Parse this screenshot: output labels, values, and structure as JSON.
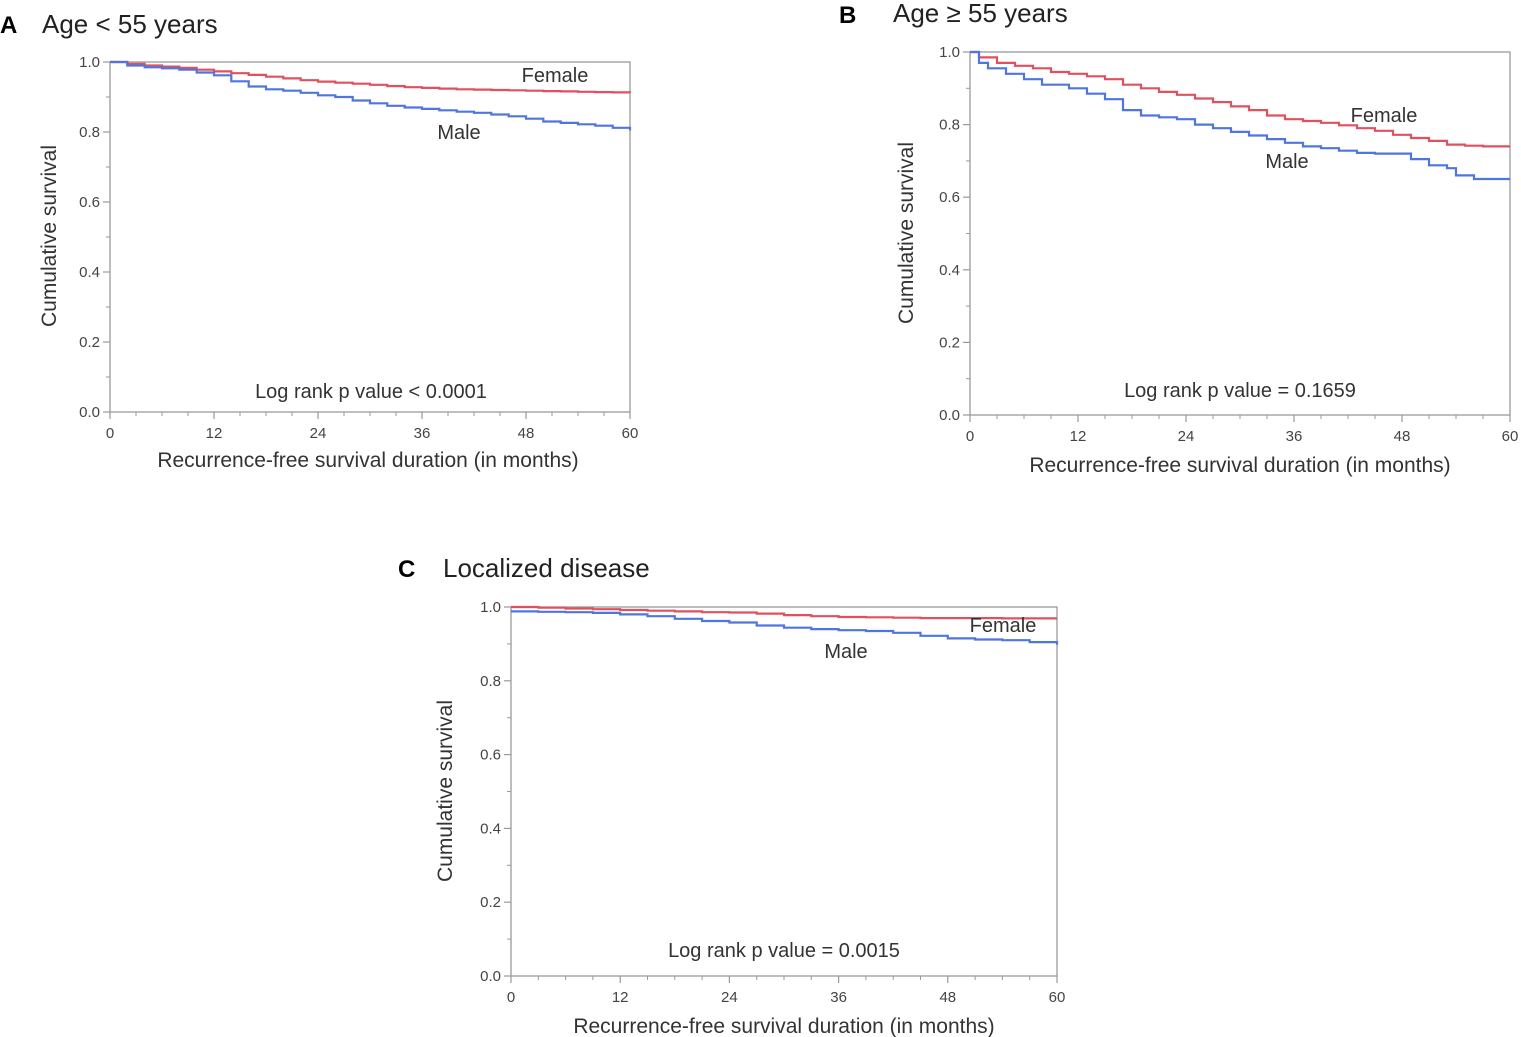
{
  "figure": {
    "panels": [
      "A",
      "B",
      "C"
    ]
  },
  "colors": {
    "female": "#e0505e",
    "male": "#4f75e0",
    "axis": "#9a9a9a"
  },
  "chart_data": [
    {
      "id": "A",
      "type": "line",
      "letter": "A",
      "title": "Age < 55 years",
      "xlabel": "Recurrence-free survival duration (in months)",
      "ylabel": "Cumulative survival",
      "xlim": [
        0,
        60
      ],
      "ylim": [
        0,
        1.0
      ],
      "xticks": [
        0,
        12,
        24,
        36,
        48,
        60
      ],
      "yticks": [
        "0.0",
        "0.2",
        "0.4",
        "0.6",
        "0.8",
        "1.0"
      ],
      "annotation": "Log rank p value < 0.0001",
      "series": [
        {
          "name": "Female",
          "label": "Female",
          "color": "#e0505e",
          "x": [
            0,
            2,
            4,
            6,
            8,
            10,
            12,
            14,
            16,
            18,
            20,
            22,
            24,
            26,
            28,
            30,
            32,
            34,
            36,
            38,
            40,
            42,
            44,
            46,
            48,
            50,
            52,
            54,
            56,
            58,
            60
          ],
          "y": [
            1.0,
            0.995,
            0.99,
            0.987,
            0.983,
            0.978,
            0.973,
            0.968,
            0.963,
            0.958,
            0.953,
            0.948,
            0.944,
            0.941,
            0.938,
            0.935,
            0.931,
            0.928,
            0.926,
            0.924,
            0.922,
            0.921,
            0.92,
            0.919,
            0.918,
            0.917,
            0.916,
            0.915,
            0.914,
            0.913,
            0.912
          ]
        },
        {
          "name": "Male",
          "label": "Male",
          "color": "#4f75e0",
          "x": [
            0,
            2,
            4,
            6,
            8,
            10,
            12,
            14,
            16,
            18,
            20,
            22,
            24,
            26,
            28,
            30,
            32,
            34,
            36,
            38,
            40,
            42,
            44,
            46,
            48,
            50,
            52,
            54,
            56,
            58,
            60
          ],
          "y": [
            1.0,
            0.99,
            0.985,
            0.982,
            0.978,
            0.97,
            0.962,
            0.945,
            0.93,
            0.922,
            0.918,
            0.912,
            0.905,
            0.9,
            0.89,
            0.882,
            0.875,
            0.87,
            0.866,
            0.862,
            0.858,
            0.855,
            0.85,
            0.845,
            0.838,
            0.83,
            0.826,
            0.822,
            0.818,
            0.812,
            0.805
          ]
        }
      ]
    },
    {
      "id": "B",
      "type": "line",
      "letter": "B",
      "title": "Age ≥ 55 years",
      "xlabel": "Recurrence-free survival duration (in months)",
      "ylabel": "Cumulative survival",
      "xlim": [
        0,
        60
      ],
      "ylim": [
        0,
        1.0
      ],
      "xticks": [
        0,
        12,
        24,
        36,
        48,
        60
      ],
      "yticks": [
        "0.0",
        "0.2",
        "0.4",
        "0.6",
        "0.8",
        "1.0"
      ],
      "annotation": "Log rank p value = 0.1659",
      "series": [
        {
          "name": "Female",
          "label": "Female",
          "color": "#e0505e",
          "x": [
            0,
            1,
            3,
            5,
            7,
            9,
            11,
            13,
            15,
            17,
            19,
            21,
            23,
            25,
            27,
            29,
            31,
            33,
            35,
            37,
            39,
            41,
            43,
            45,
            47,
            49,
            51,
            53,
            55,
            57,
            60
          ],
          "y": [
            1.0,
            0.985,
            0.97,
            0.962,
            0.955,
            0.945,
            0.94,
            0.933,
            0.925,
            0.91,
            0.9,
            0.89,
            0.882,
            0.872,
            0.862,
            0.85,
            0.84,
            0.825,
            0.815,
            0.81,
            0.805,
            0.798,
            0.79,
            0.783,
            0.772,
            0.763,
            0.755,
            0.745,
            0.742,
            0.74,
            0.74
          ]
        },
        {
          "name": "Male",
          "label": "Male",
          "color": "#4f75e0",
          "x": [
            0,
            1,
            2,
            4,
            6,
            8,
            11,
            13,
            15,
            17,
            19,
            21,
            23,
            25,
            27,
            29,
            31,
            33,
            35,
            37,
            39,
            41,
            43,
            45,
            47,
            49,
            51,
            53,
            54,
            56,
            60
          ],
          "y": [
            1.0,
            0.97,
            0.955,
            0.94,
            0.925,
            0.91,
            0.9,
            0.885,
            0.87,
            0.84,
            0.825,
            0.82,
            0.815,
            0.8,
            0.79,
            0.78,
            0.77,
            0.76,
            0.75,
            0.74,
            0.735,
            0.728,
            0.722,
            0.72,
            0.72,
            0.705,
            0.688,
            0.68,
            0.66,
            0.65,
            0.65
          ]
        }
      ]
    },
    {
      "id": "C",
      "type": "line",
      "letter": "C",
      "title": "Localized disease",
      "xlabel": "Recurrence-free survival duration (in months)",
      "ylabel": "Cumulative survival",
      "xlim": [
        0,
        60
      ],
      "ylim": [
        0,
        1.0
      ],
      "xticks": [
        0,
        12,
        24,
        36,
        48,
        60
      ],
      "yticks": [
        "0.0",
        "0.2",
        "0.4",
        "0.6",
        "0.8",
        "1.0"
      ],
      "annotation": "Log rank p value = 0.0015",
      "series": [
        {
          "name": "Female",
          "label": "Female",
          "color": "#e0505e",
          "x": [
            0,
            3,
            6,
            9,
            12,
            15,
            18,
            21,
            24,
            27,
            30,
            33,
            36,
            39,
            42,
            45,
            48,
            51,
            54,
            57,
            60
          ],
          "y": [
            1.0,
            0.998,
            0.996,
            0.994,
            0.992,
            0.99,
            0.988,
            0.986,
            0.985,
            0.982,
            0.978,
            0.975,
            0.973,
            0.972,
            0.971,
            0.97,
            0.97,
            0.97,
            0.969,
            0.969,
            0.969
          ]
        },
        {
          "name": "Male",
          "label": "Male",
          "color": "#4f75e0",
          "x": [
            0,
            3,
            6,
            9,
            12,
            15,
            18,
            21,
            24,
            27,
            30,
            33,
            36,
            39,
            42,
            45,
            48,
            51,
            54,
            57,
            60
          ],
          "y": [
            0.988,
            0.987,
            0.986,
            0.984,
            0.98,
            0.975,
            0.968,
            0.962,
            0.958,
            0.95,
            0.944,
            0.94,
            0.937,
            0.935,
            0.93,
            0.922,
            0.915,
            0.912,
            0.91,
            0.905,
            0.898
          ]
        }
      ]
    }
  ]
}
